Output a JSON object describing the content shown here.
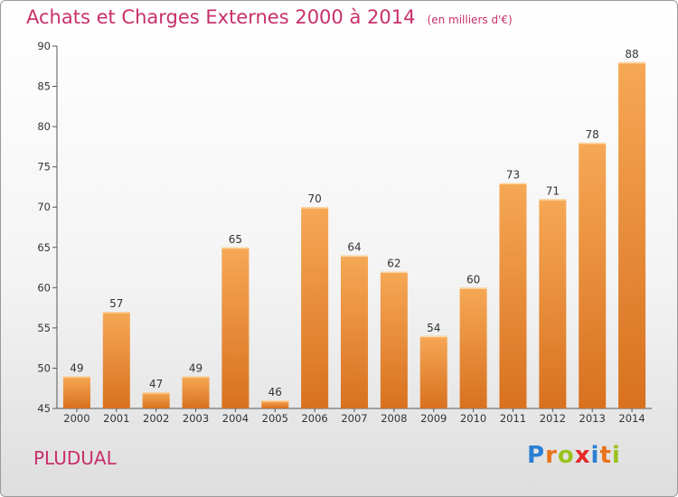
{
  "header": {
    "title": "Achats et Charges Externes 2000 à 2014",
    "unit": "(en milliers d'€)"
  },
  "footer": {
    "commune": "PLUDUAL",
    "logo": [
      "P",
      "r",
      "o",
      "x",
      "i",
      "t",
      "i"
    ]
  },
  "colors": {
    "title": "#c8306a",
    "bar_top": "#f6a855",
    "bar_bottom": "#d8711f",
    "logo": [
      "#2a7fd4",
      "#e9731b",
      "#9cc21e",
      "#e52a2a",
      "#2a7fd4",
      "#e9731b",
      "#9cc21e"
    ]
  },
  "chart_data": {
    "type": "bar",
    "categories": [
      "2000",
      "2001",
      "2002",
      "2003",
      "2004",
      "2005",
      "2006",
      "2007",
      "2008",
      "2009",
      "2010",
      "2011",
      "2012",
      "2013",
      "2014"
    ],
    "values": [
      49,
      57,
      47,
      49,
      65,
      46,
      70,
      64,
      62,
      54,
      60,
      73,
      71,
      78,
      88
    ],
    "ylim": [
      45,
      90
    ],
    "yticks": [
      45,
      50,
      55,
      60,
      65,
      70,
      75,
      80,
      85,
      90
    ],
    "grid": false,
    "data_labels": true
  }
}
